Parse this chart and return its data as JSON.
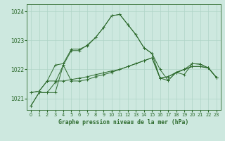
{
  "bg_color": "#cde8df",
  "grid_color": "#b0d4c8",
  "line_color": "#2d6a2d",
  "marker": "+",
  "title": "Graphe pression niveau de la mer (hPa)",
  "xlim": [
    -0.5,
    23.5
  ],
  "ylim": [
    1020.6,
    1024.25
  ],
  "yticks": [
    1021,
    1022,
    1023,
    1024
  ],
  "xticks": [
    0,
    1,
    2,
    3,
    4,
    5,
    6,
    7,
    8,
    9,
    10,
    11,
    12,
    13,
    14,
    15,
    16,
    17,
    18,
    19,
    20,
    21,
    22,
    23
  ],
  "series": [
    [
      1020.75,
      1021.2,
      1021.2,
      1021.55,
      1022.15,
      1021.6,
      1021.6,
      1021.65,
      1021.75,
      1021.82,
      1021.9,
      1022.0,
      1022.1,
      1022.2,
      1022.3,
      1022.4,
      1021.7,
      1021.75,
      1021.9,
      1022.0,
      1022.1,
      1022.1,
      1022.05,
      1021.72
    ],
    [
      1021.2,
      1021.25,
      1021.6,
      1021.6,
      1021.6,
      1021.65,
      1021.7,
      1021.75,
      1021.82,
      1021.88,
      1021.95,
      1022.0,
      1022.1,
      1022.2,
      1022.3,
      1022.4,
      1021.7,
      1021.75,
      1021.88,
      1022.0,
      1022.1,
      1022.1,
      1022.05,
      1021.72
    ],
    [
      1020.75,
      1021.2,
      1021.2,
      1021.2,
      1022.15,
      1022.65,
      1022.65,
      1022.85,
      1023.1,
      1023.45,
      1023.85,
      1023.9,
      1023.55,
      1023.2,
      1022.75,
      1022.55,
      1021.7,
      1021.62,
      1021.9,
      1021.82,
      1022.2,
      1022.18,
      1022.05,
      1021.72
    ],
    [
      1021.2,
      1021.25,
      1021.6,
      1022.15,
      1022.2,
      1022.7,
      1022.7,
      1022.82,
      1023.1,
      1023.45,
      1023.85,
      1023.9,
      1023.55,
      1023.2,
      1022.75,
      1022.55,
      1022.0,
      1021.62,
      1021.9,
      1022.0,
      1022.2,
      1022.18,
      1022.05,
      1021.72
    ]
  ]
}
